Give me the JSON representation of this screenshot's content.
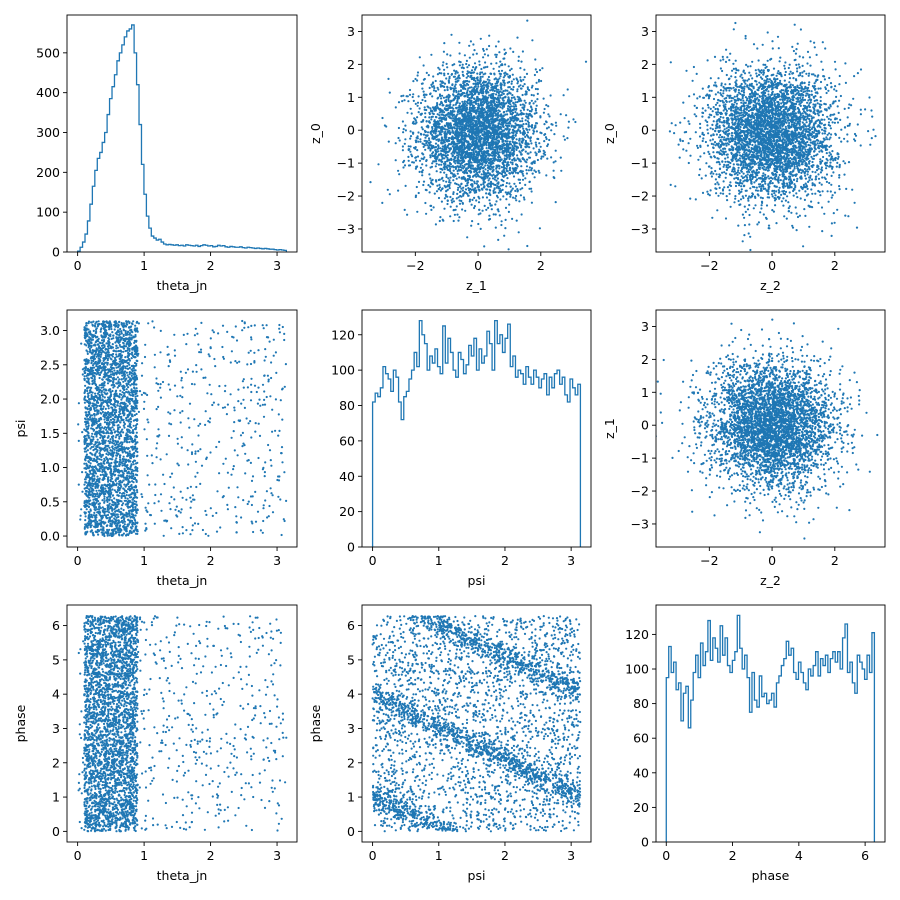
{
  "chart_data": [
    {
      "type": "histogram",
      "xlabel": "theta_jn",
      "ylabel": "",
      "xlim": [
        -0.16,
        3.3
      ],
      "ylim": [
        0,
        595
      ],
      "xticks": [
        "0",
        "1",
        "2",
        "3"
      ],
      "yticks": [
        "0",
        "100",
        "200",
        "300",
        "400",
        "500"
      ],
      "color": "#1f77b4",
      "bin_range": [
        0.0,
        3.14
      ],
      "values": [
        2,
        12,
        25,
        45,
        78,
        120,
        165,
        205,
        235,
        250,
        275,
        300,
        345,
        385,
        415,
        445,
        480,
        500,
        520,
        540,
        555,
        560,
        570,
        500,
        420,
        320,
        220,
        145,
        90,
        60,
        40,
        35,
        30,
        32,
        25,
        20,
        18,
        19,
        18,
        17,
        18,
        16,
        17,
        15,
        18,
        17,
        16,
        15,
        17,
        14,
        16,
        18,
        17,
        15,
        16,
        13,
        14,
        17,
        15,
        16,
        13,
        12,
        14,
        13,
        12,
        12,
        13,
        11,
        10,
        12,
        11,
        10,
        9,
        10,
        9,
        8,
        9,
        8,
        7,
        7,
        6,
        5,
        6,
        5,
        4
      ]
    },
    {
      "type": "scatter",
      "xlabel": "z_1",
      "ylabel": "z_0",
      "xlim": [
        -3.7,
        3.6
      ],
      "ylim": [
        -3.7,
        3.5
      ],
      "xticks": [
        "−2",
        "0",
        "2"
      ],
      "yticks": [
        "−3",
        "−2",
        "−1",
        "0",
        "1",
        "2",
        "3"
      ],
      "color": "#1f77b4",
      "distribution": "normal2d",
      "n_points": 4000,
      "sigma": [
        0.95,
        1.0
      ],
      "center": [
        0.0,
        -0.1
      ],
      "xvar": "z_1",
      "yvar": "z_0"
    },
    {
      "type": "scatter",
      "xlabel": "z_2",
      "ylabel": "z_0",
      "xlim": [
        -3.7,
        3.6
      ],
      "ylim": [
        -3.7,
        3.5
      ],
      "xticks": [
        "−2",
        "0",
        "2"
      ],
      "yticks": [
        "−3",
        "−2",
        "−1",
        "0",
        "1",
        "2",
        "3"
      ],
      "color": "#1f77b4",
      "distribution": "normal2d",
      "n_points": 4000,
      "sigma": [
        1.0,
        1.0
      ],
      "center": [
        0.0,
        -0.1
      ],
      "xvar": "z_2",
      "yvar": "z_0"
    },
    {
      "type": "scatter",
      "xlabel": "theta_jn",
      "ylabel": "psi",
      "xlim": [
        -0.16,
        3.3
      ],
      "ylim": [
        -0.16,
        3.3
      ],
      "xticks": [
        "0",
        "1",
        "2",
        "3"
      ],
      "yticks": [
        "0.0",
        "0.5",
        "1.0",
        "1.5",
        "2.0",
        "2.5",
        "3.0"
      ],
      "color": "#1f77b4",
      "distribution": "band_uniform",
      "n_points": 3500,
      "band": [
        0.1,
        0.9
      ],
      "band_fraction": 0.82,
      "x_range": [
        0.0,
        3.14
      ],
      "y_range": [
        0.0,
        3.14
      ],
      "xvar": "theta_jn",
      "yvar": "psi"
    },
    {
      "type": "histogram",
      "xlabel": "psi",
      "ylabel": "",
      "xlim": [
        -0.16,
        3.3
      ],
      "ylim": [
        0,
        134
      ],
      "xticks": [
        "0",
        "1",
        "2",
        "3"
      ],
      "yticks": [
        "0",
        "20",
        "40",
        "60",
        "80",
        "100",
        "120"
      ],
      "color": "#1f77b4",
      "bin_range": [
        0.0,
        3.14
      ],
      "values": [
        82,
        87,
        85,
        90,
        102,
        98,
        95,
        88,
        100,
        96,
        82,
        72,
        85,
        88,
        95,
        100,
        110,
        102,
        128,
        120,
        115,
        100,
        108,
        104,
        112,
        102,
        98,
        125,
        104,
        118,
        110,
        100,
        96,
        110,
        106,
        98,
        103,
        114,
        108,
        118,
        100,
        112,
        104,
        108,
        122,
        115,
        100,
        128,
        115,
        120,
        110,
        118,
        126,
        102,
        108,
        96,
        100,
        98,
        92,
        102,
        96,
        92,
        100,
        96,
        90,
        95,
        98,
        86,
        96,
        90,
        98,
        100,
        92,
        96,
        86,
        82,
        95,
        90,
        86,
        92
      ]
    },
    {
      "type": "scatter",
      "xlabel": "z_2",
      "ylabel": "z_1",
      "xlim": [
        -3.7,
        3.6
      ],
      "ylim": [
        -3.7,
        3.5
      ],
      "xticks": [
        "−2",
        "0",
        "2"
      ],
      "yticks": [
        "−3",
        "−2",
        "−1",
        "0",
        "1",
        "2",
        "3"
      ],
      "color": "#1f77b4",
      "distribution": "normal2d",
      "n_points": 4000,
      "sigma": [
        1.0,
        0.95
      ],
      "center": [
        0.0,
        0.0
      ],
      "xvar": "z_2",
      "yvar": "z_1"
    },
    {
      "type": "scatter",
      "xlabel": "theta_jn",
      "ylabel": "phase",
      "xlim": [
        -0.16,
        3.3
      ],
      "ylim": [
        -0.31,
        6.6
      ],
      "xticks": [
        "0",
        "1",
        "2",
        "3"
      ],
      "yticks": [
        "0",
        "1",
        "2",
        "3",
        "4",
        "5",
        "6"
      ],
      "color": "#1f77b4",
      "distribution": "band_uniform",
      "n_points": 3500,
      "band": [
        0.1,
        0.9
      ],
      "band_fraction": 0.82,
      "x_range": [
        0.0,
        3.14
      ],
      "y_range": [
        0.0,
        6.28
      ],
      "xvar": "theta_jn",
      "yvar": "phase"
    },
    {
      "type": "scatter",
      "xlabel": "psi",
      "ylabel": "phase",
      "xlim": [
        -0.16,
        3.3
      ],
      "ylim": [
        -0.31,
        6.6
      ],
      "xticks": [
        "0",
        "1",
        "2",
        "3"
      ],
      "yticks": [
        "0",
        "1",
        "2",
        "3",
        "4",
        "5",
        "6"
      ],
      "color": "#1f77b4",
      "distribution": "diagonal_bands",
      "n_points": 4000,
      "band_fraction": 0.6,
      "band_slope": -0.95,
      "band_intercepts": [
        4.0,
        7.0,
        1.0
      ],
      "x_range": [
        0.0,
        3.14
      ],
      "y_range": [
        0.0,
        6.28
      ],
      "xvar": "psi",
      "yvar": "phase"
    },
    {
      "type": "histogram",
      "xlabel": "phase",
      "ylabel": "",
      "xlim": [
        -0.31,
        6.6
      ],
      "ylim": [
        0,
        137
      ],
      "xticks": [
        "0",
        "2",
        "4",
        "6"
      ],
      "yticks": [
        "0",
        "20",
        "40",
        "60",
        "80",
        "100",
        "120"
      ],
      "color": "#1f77b4",
      "bin_range": [
        0.0,
        6.28
      ],
      "values": [
        95,
        113,
        98,
        104,
        88,
        92,
        70,
        86,
        90,
        66,
        82,
        98,
        108,
        95,
        115,
        102,
        110,
        128,
        105,
        118,
        112,
        104,
        125,
        108,
        118,
        102,
        98,
        105,
        110,
        131,
        112,
        100,
        108,
        95,
        75,
        98,
        82,
        78,
        96,
        84,
        86,
        80,
        82,
        86,
        78,
        92,
        96,
        102,
        106,
        116,
        108,
        112,
        98,
        94,
        104,
        98,
        92,
        88,
        100,
        96,
        102,
        110,
        96,
        106,
        102,
        108,
        98,
        106,
        110,
        104,
        110,
        100,
        118,
        126,
        98,
        104,
        92,
        86,
        108,
        104,
        100,
        94,
        108,
        98,
        121
      ]
    }
  ]
}
